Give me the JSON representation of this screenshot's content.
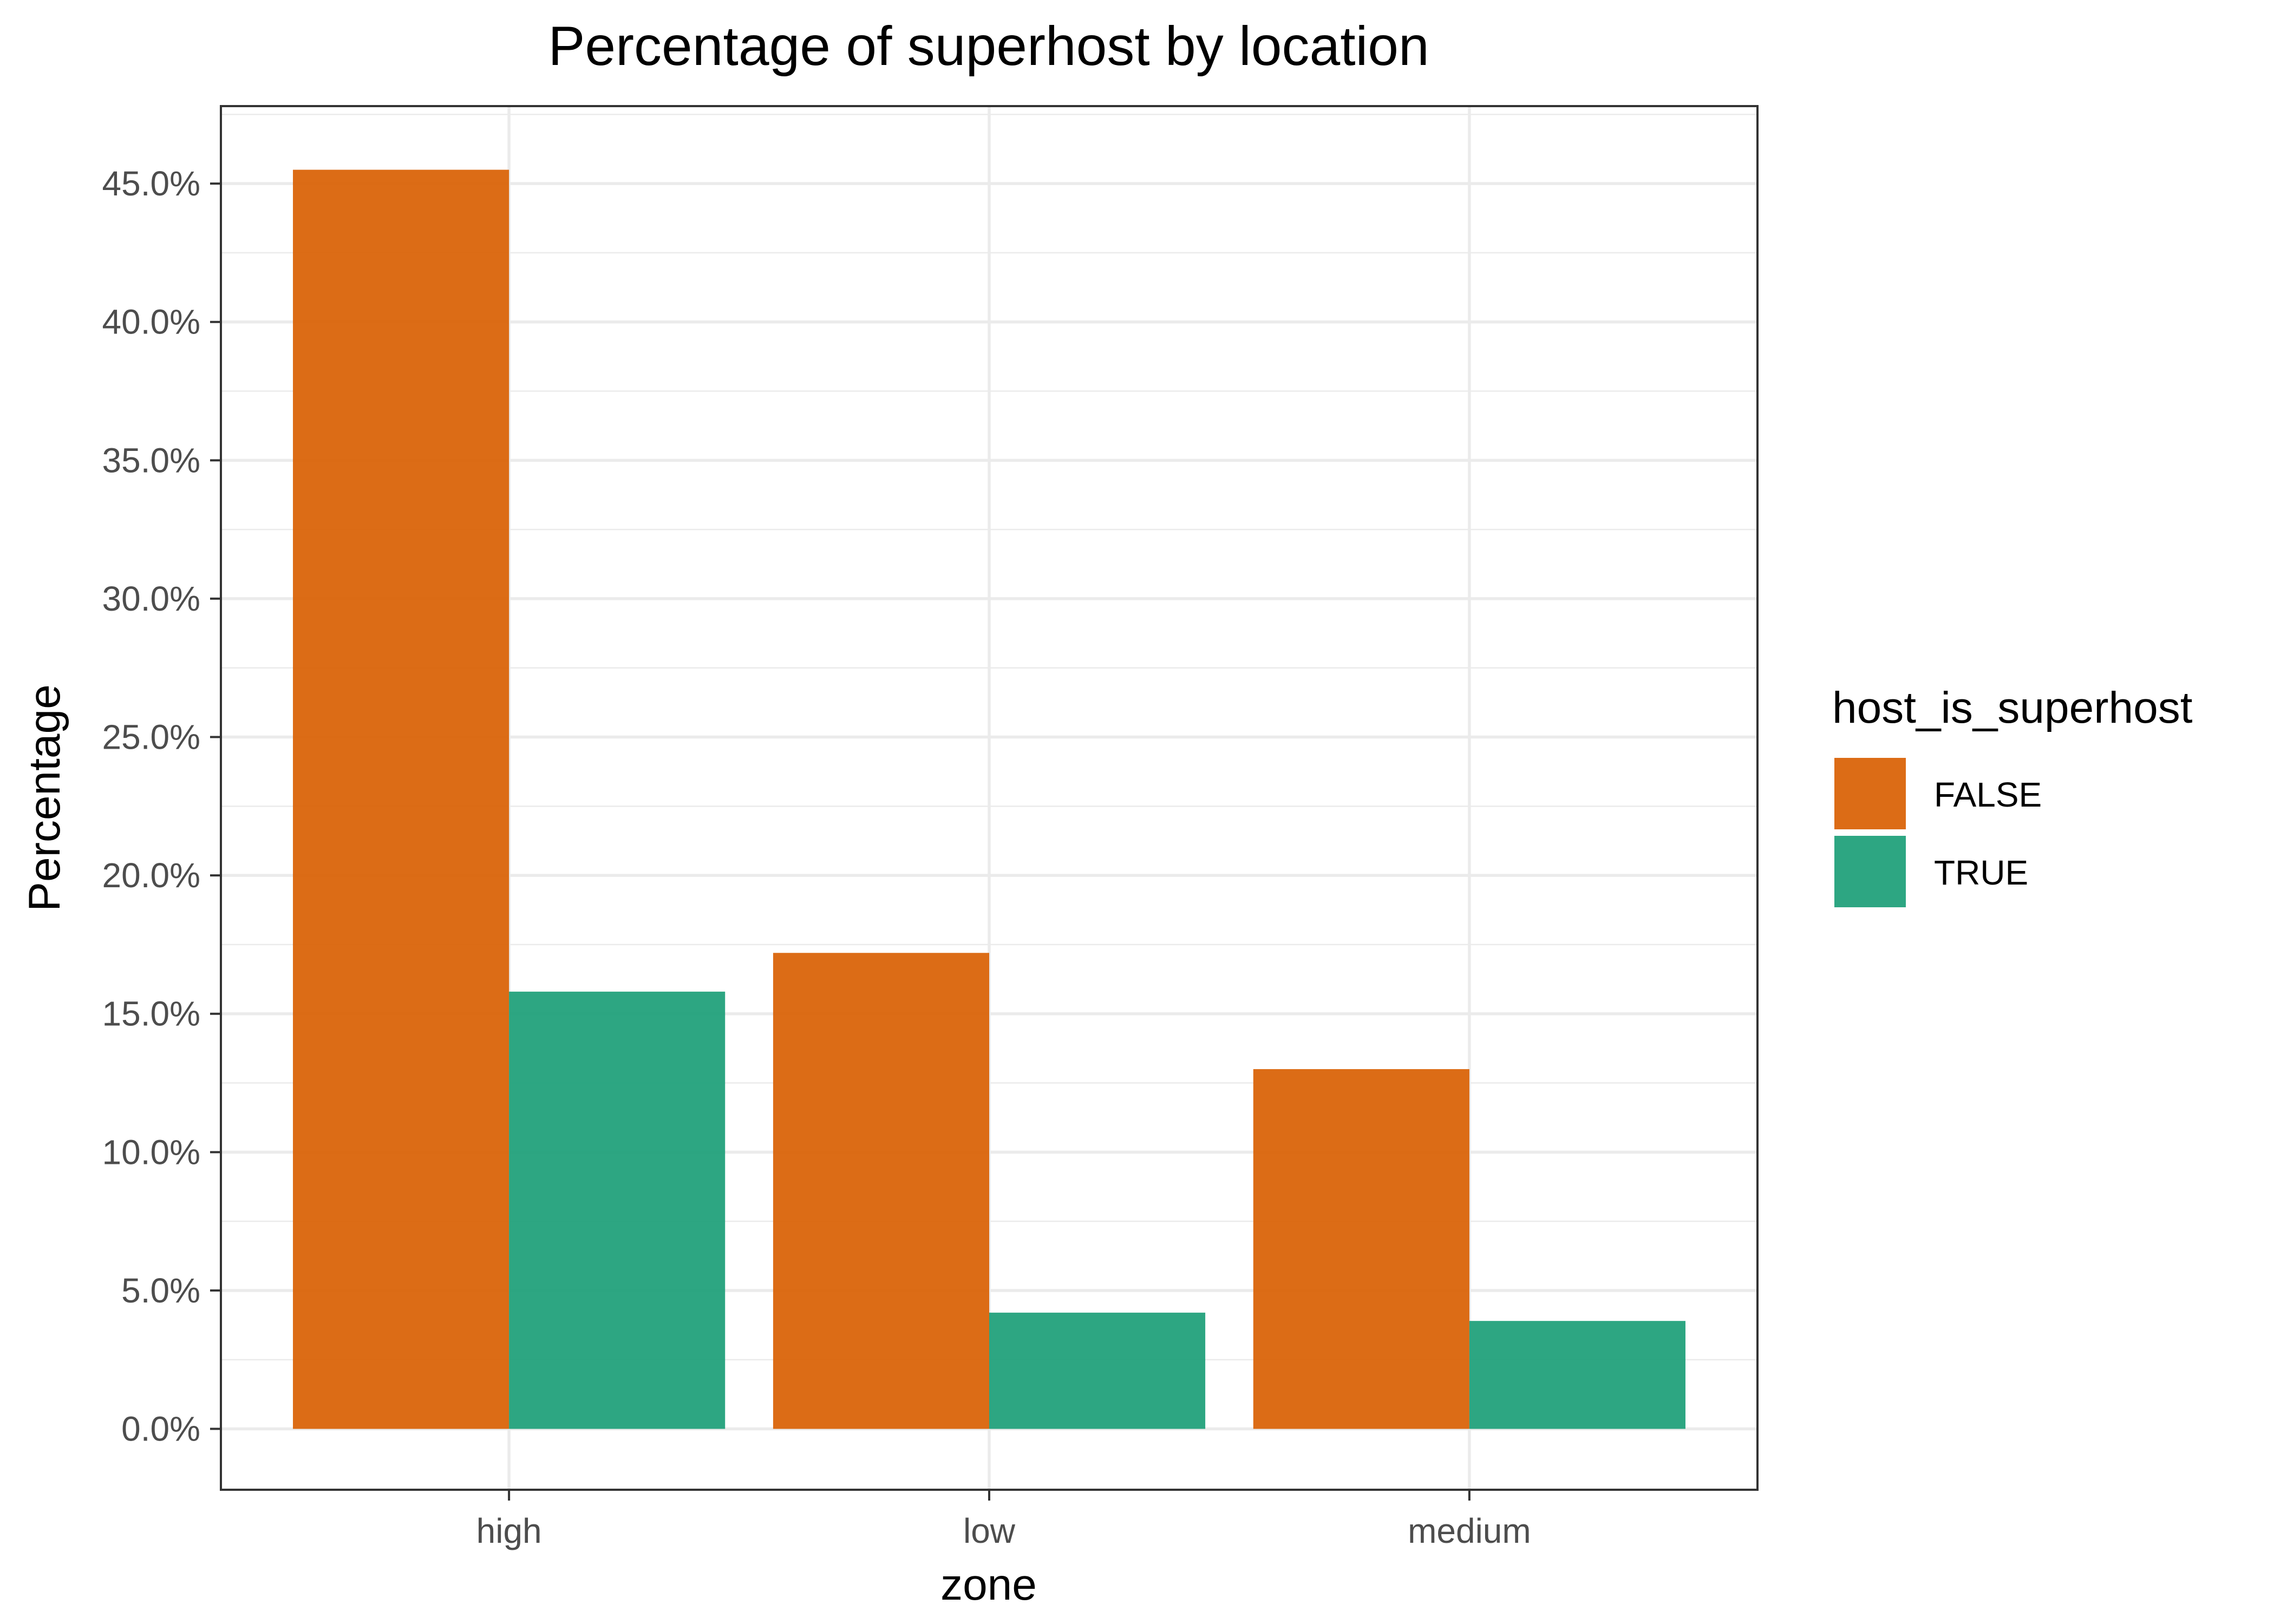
{
  "chart_data": {
    "type": "bar",
    "title": "Percentage of superhost by location",
    "xlabel": "zone",
    "ylabel": "Percentage",
    "categories": [
      "high",
      "low",
      "medium"
    ],
    "series": [
      {
        "name": "FALSE",
        "color": "#D95F02",
        "values": [
          45.5,
          17.2,
          13.0
        ]
      },
      {
        "name": "TRUE",
        "color": "#1B9E77",
        "values": [
          15.8,
          4.2,
          3.9
        ]
      }
    ],
    "ylim": [
      -2.2,
      47.8
    ],
    "yticks": [
      0,
      5,
      10,
      15,
      20,
      25,
      30,
      35,
      40,
      45
    ],
    "ytick_labels": [
      "0.0%",
      "5.0%",
      "10.0%",
      "15.0%",
      "20.0%",
      "25.0%",
      "30.0%",
      "35.0%",
      "40.0%",
      "45.0%"
    ],
    "grid": true,
    "legend": {
      "title": "host_is_superhost",
      "position": "right",
      "labels": [
        "FALSE",
        "TRUE"
      ]
    }
  }
}
